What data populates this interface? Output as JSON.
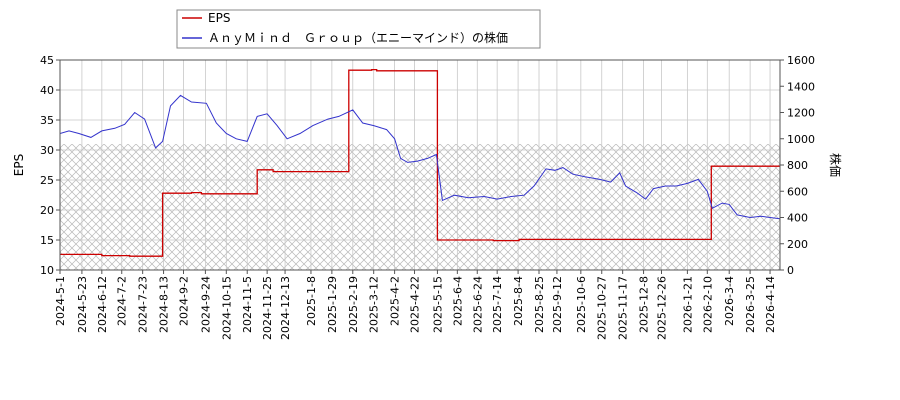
{
  "chart_data": {
    "type": "line",
    "legend": {
      "placement": "top-left",
      "entries": [
        {
          "label": "EPS",
          "color": "#cc0000"
        },
        {
          "label": "ＡｎｙＭｉｎｄ　Ｇｒｏｕｐ（エニーマインド）の株価",
          "color": "#3333cc"
        }
      ]
    },
    "ylabel_left": "EPS",
    "ylabel_right": "株価",
    "y_left_range": [
      10,
      45
    ],
    "y_left_ticks": [
      "10",
      "15",
      "20",
      "25",
      "30",
      "35",
      "40",
      "45"
    ],
    "y_right_range": [
      0,
      1600
    ],
    "y_right_ticks": [
      "0",
      "200",
      "400",
      "600",
      "800",
      "1000",
      "1200",
      "1400",
      "1600"
    ],
    "x_range": [
      "2024-05-01",
      "2026-04-24"
    ],
    "x_tick_labels": [
      "2024-5-1",
      "2024-5-23",
      "2024-6-12",
      "2024-7-2",
      "2024-7-23",
      "2024-8-13",
      "2024-9-2",
      "2024-9-24",
      "2024-10-15",
      "2024-11-5",
      "2024-11-25",
      "2024-12-13",
      "2025-1-8",
      "2025-1-29",
      "2025-2-19",
      "2025-3-12",
      "2025-4-2",
      "2025-4-22",
      "2025-5-15",
      "2025-6-4",
      "2025-6-24",
      "2025-7-14",
      "2025-8-4",
      "2025-8-25",
      "2025-9-12",
      "2025-10-6",
      "2025-10-27",
      "2025-11-17",
      "2025-12-8",
      "2025-12-26",
      "2026-1-21",
      "2026-2-10",
      "2026-3-4",
      "2026-3-25",
      "2026-4-14"
    ],
    "x_tick_dates": [
      "2024-05-01",
      "2024-05-23",
      "2024-06-12",
      "2024-07-02",
      "2024-07-23",
      "2024-08-13",
      "2024-09-02",
      "2024-09-24",
      "2024-10-15",
      "2024-11-05",
      "2024-11-25",
      "2024-12-13",
      "2025-01-08",
      "2025-01-29",
      "2025-02-19",
      "2025-03-12",
      "2025-04-02",
      "2025-04-22",
      "2025-05-15",
      "2025-06-04",
      "2025-06-24",
      "2025-07-14",
      "2025-08-04",
      "2025-08-25",
      "2025-09-12",
      "2025-10-06",
      "2025-10-27",
      "2025-11-17",
      "2025-12-08",
      "2025-12-26",
      "2026-01-21",
      "2026-02-10",
      "2026-03-04",
      "2026-03-25",
      "2026-04-14"
    ],
    "grid": true,
    "hatched_band_right_axis": [
      0,
      960
    ],
    "series": [
      {
        "name": "EPS",
        "axis": "left",
        "color": "#cc0000",
        "step": true,
        "points": [
          [
            "2024-05-01",
            12.6
          ],
          [
            "2024-06-12",
            12.4
          ],
          [
            "2024-07-10",
            12.3
          ],
          [
            "2024-08-12",
            22.8
          ],
          [
            "2024-09-10",
            22.9
          ],
          [
            "2024-09-20",
            22.7
          ],
          [
            "2024-11-15",
            26.7
          ],
          [
            "2024-12-01",
            26.4
          ],
          [
            "2025-02-15",
            43.3
          ],
          [
            "2025-03-10",
            43.4
          ],
          [
            "2025-03-15",
            43.2
          ],
          [
            "2025-05-15",
            15.0
          ],
          [
            "2025-07-10",
            14.9
          ],
          [
            "2025-08-05",
            15.1
          ],
          [
            "2026-02-14",
            27.3
          ],
          [
            "2026-04-24",
            27.2
          ]
        ]
      },
      {
        "name": "ＡｎｙＭｉｎｄ　Ｇｒｏｕｐ（エニーマインド）の株価",
        "axis": "right",
        "color": "#3333cc",
        "step": false,
        "points": [
          [
            "2024-05-01",
            1040
          ],
          [
            "2024-05-10",
            1060
          ],
          [
            "2024-05-20",
            1040
          ],
          [
            "2024-06-01",
            1010
          ],
          [
            "2024-06-12",
            1060
          ],
          [
            "2024-06-25",
            1080
          ],
          [
            "2024-07-05",
            1110
          ],
          [
            "2024-07-15",
            1200
          ],
          [
            "2024-07-25",
            1150
          ],
          [
            "2024-08-05",
            930
          ],
          [
            "2024-08-12",
            980
          ],
          [
            "2024-08-20",
            1250
          ],
          [
            "2024-08-30",
            1330
          ],
          [
            "2024-09-10",
            1280
          ],
          [
            "2024-09-25",
            1270
          ],
          [
            "2024-10-05",
            1120
          ],
          [
            "2024-10-15",
            1040
          ],
          [
            "2024-10-25",
            1000
          ],
          [
            "2024-11-05",
            980
          ],
          [
            "2024-11-15",
            1170
          ],
          [
            "2024-11-25",
            1190
          ],
          [
            "2024-12-05",
            1100
          ],
          [
            "2024-12-15",
            1000
          ],
          [
            "2024-12-28",
            1040
          ],
          [
            "2025-01-10",
            1100
          ],
          [
            "2025-01-25",
            1150
          ],
          [
            "2025-02-05",
            1170
          ],
          [
            "2025-02-19",
            1220
          ],
          [
            "2025-03-01",
            1120
          ],
          [
            "2025-03-12",
            1100
          ],
          [
            "2025-03-25",
            1070
          ],
          [
            "2025-04-02",
            1000
          ],
          [
            "2025-04-08",
            850
          ],
          [
            "2025-04-15",
            820
          ],
          [
            "2025-04-25",
            830
          ],
          [
            "2025-05-05",
            850
          ],
          [
            "2025-05-14",
            880
          ],
          [
            "2025-05-20",
            530
          ],
          [
            "2025-06-01",
            570
          ],
          [
            "2025-06-15",
            550
          ],
          [
            "2025-07-01",
            560
          ],
          [
            "2025-07-14",
            540
          ],
          [
            "2025-07-28",
            560
          ],
          [
            "2025-08-10",
            570
          ],
          [
            "2025-08-20",
            640
          ],
          [
            "2025-09-01",
            770
          ],
          [
            "2025-09-10",
            760
          ],
          [
            "2025-09-18",
            780
          ],
          [
            "2025-09-28",
            730
          ],
          [
            "2025-10-10",
            710
          ],
          [
            "2025-10-25",
            690
          ],
          [
            "2025-11-05",
            670
          ],
          [
            "2025-11-14",
            740
          ],
          [
            "2025-11-20",
            640
          ],
          [
            "2025-12-01",
            590
          ],
          [
            "2025-12-10",
            540
          ],
          [
            "2025-12-18",
            620
          ],
          [
            "2025-12-30",
            640
          ],
          [
            "2026-01-10",
            640
          ],
          [
            "2026-01-21",
            660
          ],
          [
            "2026-02-01",
            690
          ],
          [
            "2026-02-10",
            600
          ],
          [
            "2026-02-15",
            470
          ],
          [
            "2026-02-25",
            510
          ],
          [
            "2026-03-04",
            500
          ],
          [
            "2026-03-12",
            420
          ],
          [
            "2026-03-25",
            400
          ],
          [
            "2026-04-05",
            410
          ],
          [
            "2026-04-14",
            400
          ],
          [
            "2026-04-24",
            390
          ]
        ]
      }
    ]
  }
}
